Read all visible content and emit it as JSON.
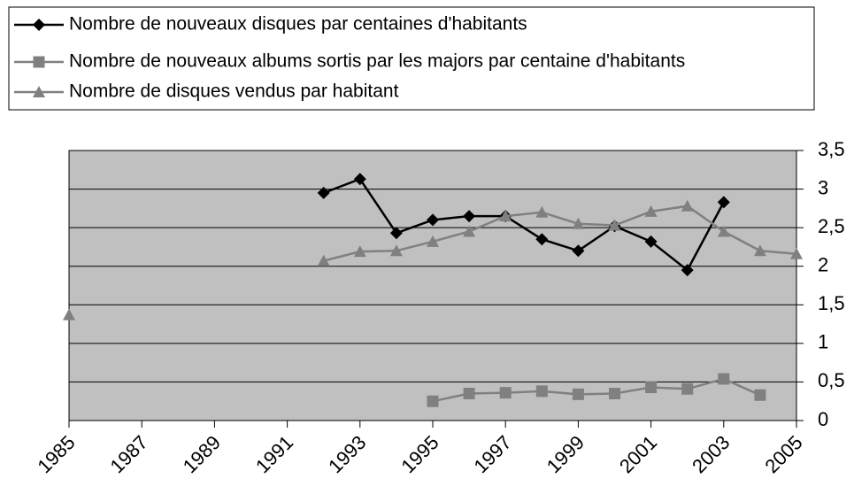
{
  "chart_data": {
    "type": "line",
    "x": [
      1985,
      1986,
      1987,
      1988,
      1989,
      1990,
      1991,
      1992,
      1993,
      1994,
      1995,
      1996,
      1997,
      1998,
      1999,
      2000,
      2001,
      2002,
      2003,
      2004,
      2005
    ],
    "series": [
      {
        "name": "Nombre de nouveaux disques par centaines d'habitants",
        "color": "#000000",
        "marker": "diamond",
        "values": [
          null,
          null,
          null,
          null,
          null,
          null,
          null,
          2.95,
          3.13,
          2.43,
          2.6,
          2.65,
          2.65,
          2.35,
          2.2,
          2.52,
          2.32,
          1.95,
          2.83,
          null,
          null
        ]
      },
      {
        "name": "Nombre de nouveaux albums sortis par les majors par centaine d'habitants",
        "color": "#808080",
        "marker": "square",
        "values": [
          null,
          null,
          null,
          null,
          null,
          null,
          null,
          null,
          null,
          null,
          0.25,
          0.35,
          0.36,
          0.38,
          0.34,
          0.35,
          0.43,
          0.41,
          0.54,
          0.33,
          null
        ]
      },
      {
        "name": "Nombre de disques vendus par habitant",
        "color": "#808080",
        "marker": "triangle",
        "values": [
          1.37,
          null,
          null,
          null,
          null,
          null,
          null,
          2.07,
          2.19,
          2.2,
          2.32,
          2.45,
          2.65,
          2.7,
          2.55,
          2.53,
          2.71,
          2.78,
          2.45,
          2.2,
          2.16
        ]
      }
    ],
    "xlim": [
      1985,
      2005
    ],
    "xticks": [
      1985,
      1987,
      1989,
      1991,
      1993,
      1995,
      1997,
      1999,
      2001,
      2003,
      2005
    ],
    "ylim": [
      0,
      3.5
    ],
    "yticks": [
      0,
      {
        "value": 0.5,
        "label": "0,5"
      },
      1,
      {
        "value": 1.5,
        "label": "1,5"
      },
      2,
      {
        "value": 2.5,
        "label": "2,5"
      },
      3,
      {
        "value": 3.5,
        "label": "3,5"
      }
    ],
    "grid": true,
    "legend": "top-left",
    "background": "#c0c0c0"
  }
}
